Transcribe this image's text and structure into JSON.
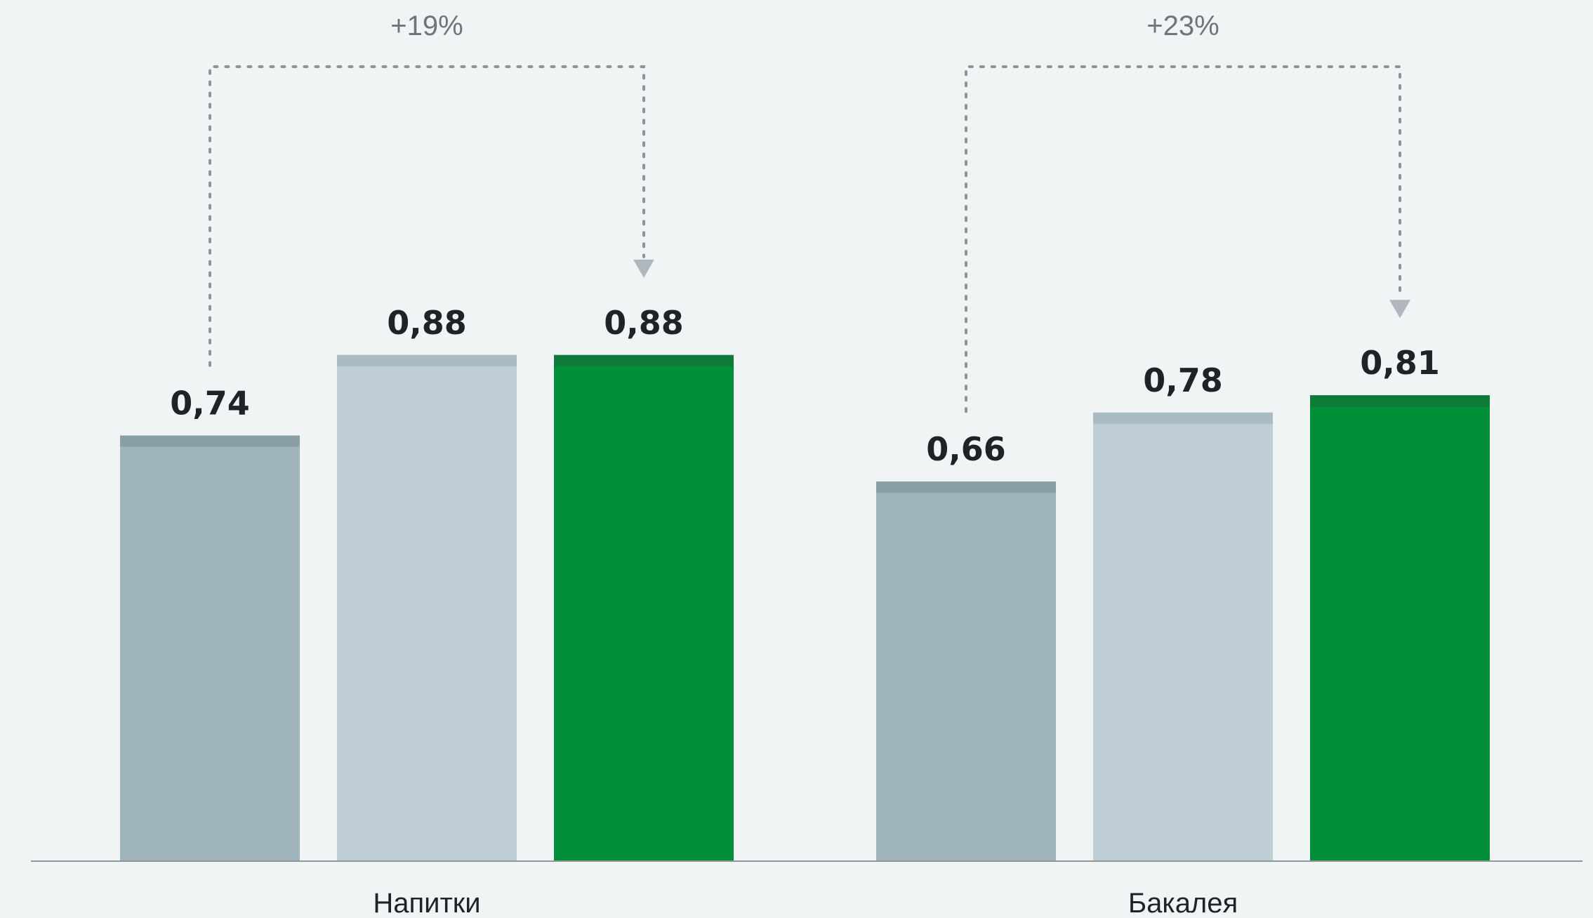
{
  "chart_data": {
    "type": "bar",
    "categories": [
      "Напитки",
      "Бакалея"
    ],
    "series": [
      {
        "values": [
          0.74,
          0.66
        ],
        "color": "#9fb4bb",
        "cap_color": "#8a9ea5"
      },
      {
        "values": [
          0.88,
          0.78
        ],
        "color": "#bfcfd5",
        "cap_color": "#a9bcc3"
      },
      {
        "values": [
          0.88,
          0.81
        ],
        "color": "#008f39",
        "cap_color": "#0f7a3a"
      }
    ],
    "value_labels": [
      [
        "0,74",
        "0,66"
      ],
      [
        "0,88",
        "0,78"
      ],
      [
        "0,88",
        "0,81"
      ]
    ],
    "annotations": [
      "+19%",
      "+23%"
    ],
    "ylim": [
      0,
      1.0
    ],
    "grid": false,
    "legend": "none"
  }
}
